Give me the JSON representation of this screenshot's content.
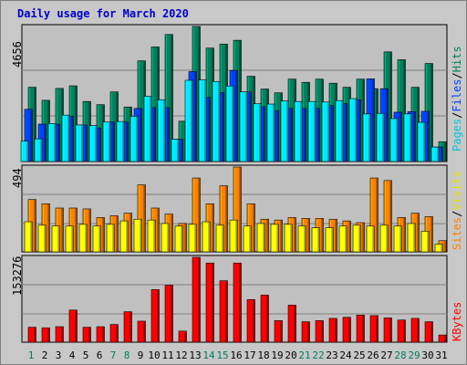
{
  "title": "Daily usage for March 2020",
  "colors": {
    "hits": "#00805c",
    "files": "#0040ff",
    "pages": "#00e8ff",
    "visits": "#ffff00",
    "sites": "#ff8000",
    "kbytes": "#ff0000",
    "weekend_day": "#00805c",
    "weekday": "#000000",
    "panel_bg": "#c0c0c0",
    "grid": "#808080"
  },
  "panel1_legend": {
    "pages": "Pages",
    "sep1": "/",
    "files": "Files",
    "sep2": "/",
    "hits": "Hits"
  },
  "panel2_legend": {
    "sites": "Sites",
    "sep1": "/",
    "visits": "Visits"
  },
  "panel3_legend": {
    "kbytes": "KBytes"
  },
  "chart_data": [
    {
      "type": "bar",
      "title": "Daily usage for March 2020",
      "categories": [
        "1",
        "2",
        "3",
        "4",
        "5",
        "6",
        "7",
        "8",
        "9",
        "10",
        "11",
        "12",
        "13",
        "14",
        "15",
        "16",
        "17",
        "18",
        "19",
        "20",
        "21",
        "22",
        "23",
        "24",
        "25",
        "26",
        "27",
        "28",
        "29",
        "30",
        "31"
      ],
      "weekend_days": [
        "1",
        "7",
        "8",
        "14",
        "15",
        "21",
        "22",
        "28",
        "29"
      ],
      "ymax_label": "4656",
      "ylim": [
        0,
        4656
      ],
      "series": [
        {
          "name": "Hits",
          "color": "#00805c",
          "values": [
            2560,
            2110,
            2520,
            2610,
            2070,
            1960,
            2400,
            1880,
            3470,
            3950,
            4380,
            1390,
            4656,
            3910,
            4050,
            4180,
            2940,
            2500,
            2370,
            2840,
            2730,
            2840,
            2700,
            2560,
            2840,
            2510,
            3780,
            3510,
            2560,
            3380,
            680
          ]
        },
        {
          "name": "Files",
          "color": "#0040ff",
          "values": [
            1800,
            1290,
            1290,
            1560,
            1260,
            1160,
            1360,
            1360,
            1830,
            1860,
            1860,
            770,
            3100,
            2210,
            2380,
            3140,
            2400,
            1890,
            1750,
            1830,
            1830,
            1830,
            1930,
            2000,
            2130,
            2850,
            2510,
            1700,
            1720,
            1730,
            500
          ]
        },
        {
          "name": "Pages",
          "color": "#00e8ff",
          "values": [
            700,
            780,
            1310,
            1600,
            1260,
            1240,
            1360,
            1380,
            1560,
            2250,
            2130,
            770,
            2800,
            2810,
            2760,
            2600,
            2400,
            1990,
            1980,
            2090,
            2070,
            2070,
            2050,
            2100,
            2170,
            1640,
            1660,
            1480,
            1640,
            1350,
            500
          ]
        }
      ]
    },
    {
      "type": "bar",
      "ymax_label": "494",
      "ylim": [
        0,
        494
      ],
      "series": [
        {
          "name": "Sites",
          "color": "#ff8000",
          "values": [
            305,
            280,
            255,
            255,
            250,
            200,
            210,
            225,
            390,
            255,
            220,
            165,
            430,
            280,
            385,
            494,
            280,
            190,
            185,
            200,
            195,
            195,
            190,
            180,
            170,
            430,
            415,
            200,
            225,
            205,
            65
          ]
        },
        {
          "name": "Visits",
          "color": "#ffff00",
          "values": [
            175,
            155,
            150,
            150,
            160,
            150,
            160,
            180,
            190,
            185,
            165,
            150,
            160,
            175,
            155,
            185,
            150,
            165,
            160,
            160,
            150,
            140,
            140,
            150,
            155,
            150,
            155,
            150,
            165,
            120,
            45
          ]
        }
      ]
    },
    {
      "type": "bar",
      "ymax_label": "153276",
      "ylim": [
        0,
        153276
      ],
      "series": [
        {
          "name": "KBytes",
          "color": "#ff0000",
          "values": [
            27000,
            26000,
            28000,
            58000,
            27000,
            28000,
            32000,
            55000,
            38000,
            95000,
            103000,
            20000,
            153276,
            143000,
            111000,
            143000,
            77000,
            85000,
            39000,
            67000,
            37000,
            39000,
            43000,
            45000,
            49000,
            48000,
            44000,
            40000,
            43000,
            37000,
            13000
          ]
        }
      ]
    }
  ]
}
